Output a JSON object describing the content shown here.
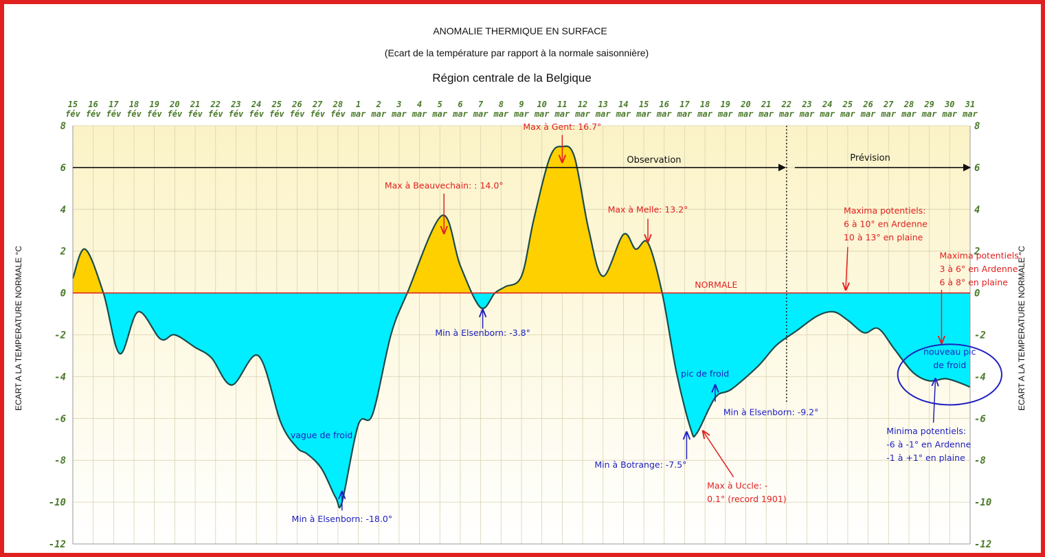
{
  "chart_data": {
    "type": "area",
    "title": "ANOMALIE THERMIQUE EN SURFACE",
    "subtitle": "(Ecart de la température par rapport à la normale saisonnière)",
    "subtitle2": "Région centrale de la Belgique",
    "ylabel": "ECART A LA TEMPERATURE NORMALE °C",
    "ylim": [
      -12,
      8
    ],
    "yticks": [
      8,
      6,
      4,
      2,
      0,
      -2,
      -4,
      -6,
      -8,
      -10,
      -12
    ],
    "x_dates": [
      [
        "15",
        "fév"
      ],
      [
        "16",
        "fév"
      ],
      [
        "17",
        "fév"
      ],
      [
        "18",
        "fév"
      ],
      [
        "19",
        "fév"
      ],
      [
        "20",
        "fév"
      ],
      [
        "21",
        "fév"
      ],
      [
        "22",
        "fév"
      ],
      [
        "23",
        "fév"
      ],
      [
        "24",
        "fév"
      ],
      [
        "25",
        "fév"
      ],
      [
        "26",
        "fév"
      ],
      [
        "27",
        "fév"
      ],
      [
        "28",
        "fév"
      ],
      [
        "1",
        "mar"
      ],
      [
        "2",
        "mar"
      ],
      [
        "3",
        "mar"
      ],
      [
        "4",
        "mar"
      ],
      [
        "5",
        "mar"
      ],
      [
        "6",
        "mar"
      ],
      [
        "7",
        "mar"
      ],
      [
        "8",
        "mar"
      ],
      [
        "9",
        "mar"
      ],
      [
        "10",
        "mar"
      ],
      [
        "11",
        "mar"
      ],
      [
        "12",
        "mar"
      ],
      [
        "13",
        "mar"
      ],
      [
        "14",
        "mar"
      ],
      [
        "15",
        "mar"
      ],
      [
        "16",
        "mar"
      ],
      [
        "17",
        "mar"
      ],
      [
        "18",
        "mar"
      ],
      [
        "19",
        "mar"
      ],
      [
        "20",
        "mar"
      ],
      [
        "21",
        "mar"
      ],
      [
        "22",
        "mar"
      ],
      [
        "23",
        "mar"
      ],
      [
        "24",
        "mar"
      ],
      [
        "25",
        "mar"
      ],
      [
        "26",
        "mar"
      ],
      [
        "27",
        "mar"
      ],
      [
        "28",
        "mar"
      ],
      [
        "29",
        "mar"
      ],
      [
        "30",
        "mar"
      ],
      [
        "31",
        "mar"
      ]
    ],
    "series": [
      {
        "values": [
          [
            0.0,
            0.7
          ],
          [
            0.6,
            2.1
          ],
          [
            1.5,
            0.0
          ],
          [
            2.3,
            -2.9
          ],
          [
            3.2,
            -0.9
          ],
          [
            4.3,
            -2.2
          ],
          [
            5.0,
            -2.0
          ],
          [
            6.0,
            -2.6
          ],
          [
            6.8,
            -3.1
          ],
          [
            7.8,
            -4.4
          ],
          [
            9.1,
            -3.0
          ],
          [
            10.2,
            -6.2
          ],
          [
            11.0,
            -7.4
          ],
          [
            11.5,
            -7.7
          ],
          [
            12.2,
            -8.4
          ],
          [
            12.9,
            -9.8
          ],
          [
            13.2,
            -10.0
          ],
          [
            14.0,
            -6.3
          ],
          [
            14.7,
            -5.8
          ],
          [
            15.6,
            -2.0
          ],
          [
            16.4,
            0.0
          ],
          [
            18.1,
            3.7
          ],
          [
            19.0,
            1.3
          ],
          [
            20.0,
            -0.7
          ],
          [
            20.7,
            0.0
          ],
          [
            21.2,
            0.3
          ],
          [
            22.0,
            0.8
          ],
          [
            22.6,
            3.5
          ],
          [
            23.4,
            6.5
          ],
          [
            24.0,
            7.0
          ],
          [
            24.6,
            6.5
          ],
          [
            25.3,
            3.0
          ],
          [
            26.0,
            0.8
          ],
          [
            27.0,
            2.8
          ],
          [
            27.6,
            2.1
          ],
          [
            28.2,
            2.4
          ],
          [
            28.9,
            0.0
          ],
          [
            29.6,
            -3.8
          ],
          [
            30.3,
            -6.5
          ],
          [
            30.6,
            -6.7
          ],
          [
            31.5,
            -5.0
          ],
          [
            32.3,
            -4.6
          ],
          [
            33.6,
            -3.5
          ],
          [
            34.5,
            -2.5
          ],
          [
            35.5,
            -1.8
          ],
          [
            36.5,
            -1.1
          ],
          [
            37.3,
            -0.9
          ],
          [
            38.0,
            -1.3
          ],
          [
            38.8,
            -1.9
          ],
          [
            39.5,
            -1.7
          ],
          [
            40.3,
            -2.7
          ],
          [
            41.2,
            -3.8
          ],
          [
            42.0,
            -4.2
          ],
          [
            42.8,
            -4.1
          ],
          [
            43.5,
            -4.3
          ],
          [
            44.0,
            -4.5
          ]
        ]
      }
    ],
    "normal_label": "NORMALE",
    "observation_label": "Observation",
    "forecast_label": "Prévision",
    "forecast_divider_x": 35,
    "annotations": [
      {
        "lines": [
          "Max à Gent: 16.7°"
        ],
        "color": "#e02020",
        "tx": 24.0,
        "ty": 7.8,
        "arrow": [
          [
            24.0,
            7.55
          ],
          [
            24.0,
            6.25
          ]
        ]
      },
      {
        "lines": [
          "Max à Beauvechain: : 14.0°"
        ],
        "color": "#e02020",
        "tx": 18.2,
        "ty": 5.0,
        "arrow": [
          [
            18.2,
            4.75
          ],
          [
            18.2,
            2.85
          ]
        ]
      },
      {
        "lines": [
          "Max à Melle: 13.2°"
        ],
        "color": "#e02020",
        "tx": 28.2,
        "ty": 3.85,
        "arrow": [
          [
            28.2,
            3.55
          ],
          [
            28.2,
            2.45
          ]
        ]
      },
      {
        "lines": [
          "Maxima potentiels:",
          "6 à 10° en Ardenne",
          "10 à 13° en plaine"
        ],
        "color": "#e02020",
        "tx": 37.8,
        "ty": 3.8,
        "align": "start",
        "arrow": [
          [
            38.0,
            2.2
          ],
          [
            37.9,
            0.15
          ]
        ]
      },
      {
        "lines": [
          "Maxima potentiels:",
          "3 à 6° en Ardenne",
          "6 à 8° en plaine"
        ],
        "color": "#e02020",
        "tx": 42.5,
        "ty": 1.65,
        "align": "start",
        "arrow": [
          [
            42.6,
            0.15
          ],
          [
            42.6,
            -2.4
          ]
        ]
      },
      {
        "lines": [
          "NORMALE"
        ],
        "color": "#e02020",
        "tx": 30.5,
        "ty": 0.25,
        "align": "start"
      },
      {
        "lines": [
          "Min à Elsenborn: -3.8°"
        ],
        "color": "#2020c0",
        "tx": 20.1,
        "ty": -2.05,
        "arrow": [
          [
            20.1,
            -1.7
          ],
          [
            20.1,
            -0.8
          ]
        ]
      },
      {
        "lines": [
          "Min à Elsenborn: -18.0°"
        ],
        "color": "#2020c0",
        "tx": 13.2,
        "ty": -10.95,
        "arrow": [
          [
            13.2,
            -10.4
          ],
          [
            13.2,
            -9.5
          ]
        ]
      },
      {
        "lines": [
          "vague de froid"
        ],
        "color": "#2020c0",
        "tx": 12.2,
        "ty": -6.95
      },
      {
        "lines": [
          "pic de froid"
        ],
        "color": "#2020c0",
        "tx": 31.0,
        "ty": -4.0
      },
      {
        "lines": [
          "Min à Elsenborn: -9.2°"
        ],
        "color": "#2020c0",
        "tx": 31.9,
        "ty": -5.85,
        "align": "start",
        "arrow": [
          [
            31.5,
            -5.2
          ],
          [
            31.5,
            -4.4
          ]
        ]
      },
      {
        "lines": [
          "Min à Botrange: -7.5°"
        ],
        "color": "#2020c0",
        "tx": 30.1,
        "ty": -8.35,
        "align": "end",
        "arrow": [
          [
            30.1,
            -7.95
          ],
          [
            30.1,
            -6.65
          ]
        ]
      },
      {
        "lines": [
          "Max à Uccle: -",
          "0.1° (record 1901)"
        ],
        "color": "#e02020",
        "tx": 31.1,
        "ty": -9.35,
        "align": "start",
        "arrow": [
          [
            32.4,
            -8.8
          ],
          [
            30.9,
            -6.6
          ]
        ]
      },
      {
        "lines": [
          "nouveau pic",
          "de froid"
        ],
        "color": "#2020c0",
        "tx": 43.0,
        "ty": -2.95
      },
      {
        "lines": [
          "Minima potentiels:",
          "-6 à -1° en Ardenne",
          "-1 à +1° en plaine"
        ],
        "color": "#2020c0",
        "tx": 39.9,
        "ty": -6.75,
        "align": "start",
        "arrow": [
          [
            42.2,
            -6.2
          ],
          [
            42.3,
            -4.1
          ]
        ]
      }
    ],
    "ellipse": {
      "cx": 43.0,
      "cy": -3.9,
      "rx": 2.55,
      "ry": 1.45,
      "color": "#2020c0"
    },
    "colors": {
      "warm_fill": "#ffd000",
      "cold_fill": "#00eeff",
      "curve": "#1a4a4a",
      "normal_line": "#e02020",
      "tick_color": "#4a7a2a",
      "frame": "#e02020",
      "bg_top": "#fbf3c6",
      "bg_bottom": "#ffffff"
    }
  }
}
